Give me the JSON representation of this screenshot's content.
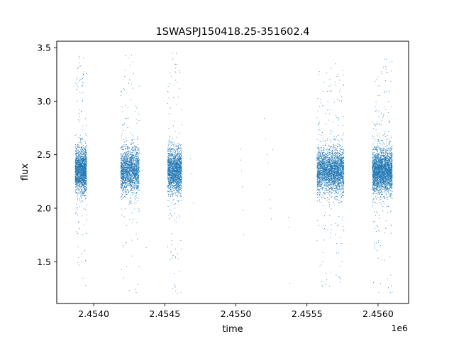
{
  "chart_data": {
    "type": "scatter",
    "title": "1SWASPJ150418.25-351602.4",
    "xlabel": "time",
    "ylabel": "flux",
    "x_offset_label": "1e6",
    "x_scale_factor": 1000000,
    "xlim": [
      2453740,
      2456215
    ],
    "ylim": [
      1.11,
      3.56
    ],
    "xticks": [
      2454000,
      2454500,
      2455000,
      2455500,
      2456000
    ],
    "xtick_labels": [
      "2.4540",
      "2.4545",
      "2.4550",
      "2.4555",
      "2.4560"
    ],
    "yticks": [
      1.5,
      2.0,
      2.5,
      3.0,
      3.5
    ],
    "ytick_labels": [
      "1.5",
      "2.0",
      "2.5",
      "3.0",
      "3.5"
    ],
    "grid": false,
    "legend": "none",
    "marker_color": "#1f77b4",
    "clusters": [
      {
        "x_start": 2453870,
        "x_end": 2453950,
        "median": 2.35,
        "spread_core": 0.2,
        "y_min": 1.25,
        "y_max": 3.47,
        "density": "high"
      },
      {
        "x_start": 2454190,
        "x_end": 2454320,
        "median": 2.35,
        "spread_core": 0.2,
        "y_min": 1.2,
        "y_max": 3.45,
        "density": "high"
      },
      {
        "x_start": 2454520,
        "x_end": 2454620,
        "median": 2.35,
        "spread_core": 0.2,
        "y_min": 1.2,
        "y_max": 3.45,
        "density": "high"
      },
      {
        "x_start": 2455570,
        "x_end": 2455760,
        "median": 2.35,
        "spread_core": 0.2,
        "y_min": 1.25,
        "y_max": 3.35,
        "density": "very high"
      },
      {
        "x_start": 2455960,
        "x_end": 2456100,
        "median": 2.35,
        "spread_core": 0.2,
        "y_min": 1.2,
        "y_max": 3.4,
        "density": "very high"
      }
    ],
    "sparse_points": [
      {
        "x": 2454680,
        "y": 2.46
      },
      {
        "x": 2454690,
        "y": 2.32
      },
      {
        "x": 2454700,
        "y": 2.05
      },
      {
        "x": 2455030,
        "y": 2.55
      },
      {
        "x": 2455035,
        "y": 2.45
      },
      {
        "x": 2455040,
        "y": 2.35
      },
      {
        "x": 2455045,
        "y": 2.2
      },
      {
        "x": 2455050,
        "y": 1.98
      },
      {
        "x": 2455055,
        "y": 1.75
      },
      {
        "x": 2455200,
        "y": 2.84
      },
      {
        "x": 2455210,
        "y": 2.65
      },
      {
        "x": 2455220,
        "y": 2.5
      },
      {
        "x": 2455225,
        "y": 2.42
      },
      {
        "x": 2455235,
        "y": 2.22
      },
      {
        "x": 2455240,
        "y": 2.08
      },
      {
        "x": 2455245,
        "y": 2.0
      },
      {
        "x": 2455250,
        "y": 1.9
      },
      {
        "x": 2455260,
        "y": 2.55
      },
      {
        "x": 2455370,
        "y": 1.91
      },
      {
        "x": 2455375,
        "y": 1.82
      },
      {
        "x": 2455380,
        "y": 1.3
      },
      {
        "x": 2454370,
        "y": 1.63
      },
      {
        "x": 2454340,
        "y": 2.35
      }
    ]
  }
}
